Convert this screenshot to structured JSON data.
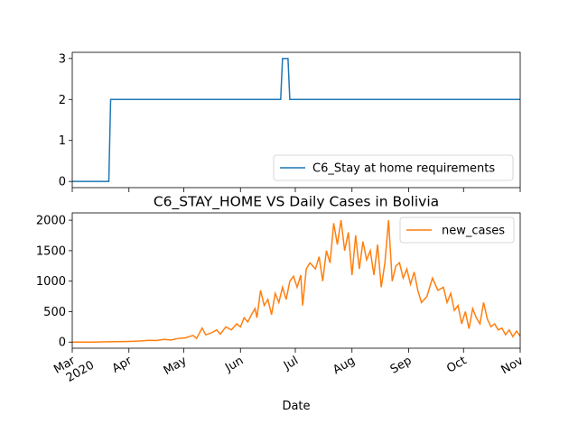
{
  "chart_data": [
    {
      "type": "line",
      "title": "",
      "xlabel": "",
      "ylabel": "",
      "ylim": [
        -0.15,
        3.15
      ],
      "yticks": [
        0,
        1,
        2,
        3
      ],
      "xlim": [
        "2020-03-01",
        "2020-11-01"
      ],
      "legend": {
        "placement": "lower-right",
        "entries": [
          "C6_Stay at home requirements"
        ]
      },
      "grid": false,
      "series": [
        {
          "name": "C6_Stay at home requirements",
          "color": "#1f77b4",
          "points": [
            [
              "2020-03-01",
              0
            ],
            [
              "2020-03-21",
              0
            ],
            [
              "2020-03-22",
              2
            ],
            [
              "2020-06-23",
              2
            ],
            [
              "2020-06-24",
              3
            ],
            [
              "2020-06-27",
              3
            ],
            [
              "2020-06-28",
              2
            ],
            [
              "2020-11-01",
              2
            ]
          ]
        }
      ]
    },
    {
      "type": "line",
      "title": "C6_STAY_HOME VS Daily Cases in Bolivia",
      "xlabel": "Date",
      "ylabel": "",
      "ylim": [
        -100,
        2120
      ],
      "yticks": [
        0,
        500,
        1000,
        1500,
        2000
      ],
      "xlim": [
        "2020-03-01",
        "2020-11-01"
      ],
      "xticks": [
        {
          "date": "2020-03-01",
          "label": "Mar",
          "sublabel": "2020"
        },
        {
          "date": "2020-04-01",
          "label": "Apr"
        },
        {
          "date": "2020-05-01",
          "label": "May"
        },
        {
          "date": "2020-06-01",
          "label": "Jun"
        },
        {
          "date": "2020-07-01",
          "label": "Jul"
        },
        {
          "date": "2020-08-01",
          "label": "Aug"
        },
        {
          "date": "2020-09-01",
          "label": "Sep"
        },
        {
          "date": "2020-10-01",
          "label": "Oct"
        },
        {
          "date": "2020-11-01",
          "label": "Nov"
        }
      ],
      "legend": {
        "placement": "top-right",
        "entries": [
          "new_cases"
        ]
      },
      "grid": false,
      "series": [
        {
          "name": "new_cases",
          "color": "#ff7f0e",
          "points": [
            [
              "2020-03-01",
              0
            ],
            [
              "2020-03-10",
              0
            ],
            [
              "2020-03-15",
              2
            ],
            [
              "2020-03-20",
              5
            ],
            [
              "2020-03-25",
              8
            ],
            [
              "2020-03-30",
              10
            ],
            [
              "2020-04-04",
              14
            ],
            [
              "2020-04-08",
              20
            ],
            [
              "2020-04-12",
              30
            ],
            [
              "2020-04-16",
              25
            ],
            [
              "2020-04-20",
              45
            ],
            [
              "2020-04-24",
              35
            ],
            [
              "2020-04-28",
              60
            ],
            [
              "2020-05-02",
              70
            ],
            [
              "2020-05-06",
              110
            ],
            [
              "2020-05-08",
              60
            ],
            [
              "2020-05-11",
              230
            ],
            [
              "2020-05-13",
              120
            ],
            [
              "2020-05-16",
              150
            ],
            [
              "2020-05-19",
              200
            ],
            [
              "2020-05-21",
              130
            ],
            [
              "2020-05-24",
              250
            ],
            [
              "2020-05-27",
              200
            ],
            [
              "2020-05-30",
              300
            ],
            [
              "2020-06-01",
              250
            ],
            [
              "2020-06-03",
              400
            ],
            [
              "2020-06-05",
              330
            ],
            [
              "2020-06-07",
              450
            ],
            [
              "2020-06-09",
              550
            ],
            [
              "2020-06-10",
              400
            ],
            [
              "2020-06-12",
              850
            ],
            [
              "2020-06-14",
              600
            ],
            [
              "2020-06-16",
              700
            ],
            [
              "2020-06-18",
              450
            ],
            [
              "2020-06-20",
              800
            ],
            [
              "2020-06-22",
              650
            ],
            [
              "2020-06-24",
              900
            ],
            [
              "2020-06-26",
              700
            ],
            [
              "2020-06-28",
              1000
            ],
            [
              "2020-06-30",
              1080
            ],
            [
              "2020-07-02",
              900
            ],
            [
              "2020-07-04",
              1100
            ],
            [
              "2020-07-05",
              600
            ],
            [
              "2020-07-07",
              1200
            ],
            [
              "2020-07-09",
              1300
            ],
            [
              "2020-07-12",
              1200
            ],
            [
              "2020-07-14",
              1400
            ],
            [
              "2020-07-16",
              1000
            ],
            [
              "2020-07-18",
              1500
            ],
            [
              "2020-07-20",
              1300
            ],
            [
              "2020-07-22",
              1950
            ],
            [
              "2020-07-24",
              1600
            ],
            [
              "2020-07-26",
              2000
            ],
            [
              "2020-07-28",
              1500
            ],
            [
              "2020-07-30",
              1800
            ],
            [
              "2020-08-01",
              1100
            ],
            [
              "2020-08-03",
              1750
            ],
            [
              "2020-08-05",
              1200
            ],
            [
              "2020-08-07",
              1650
            ],
            [
              "2020-08-09",
              1350
            ],
            [
              "2020-08-11",
              1500
            ],
            [
              "2020-08-13",
              1100
            ],
            [
              "2020-08-15",
              1600
            ],
            [
              "2020-08-17",
              900
            ],
            [
              "2020-08-19",
              1300
            ],
            [
              "2020-08-21",
              2000
            ],
            [
              "2020-08-23",
              1000
            ],
            [
              "2020-08-25",
              1250
            ],
            [
              "2020-08-27",
              1300
            ],
            [
              "2020-08-29",
              1050
            ],
            [
              "2020-08-31",
              1200
            ],
            [
              "2020-09-02",
              950
            ],
            [
              "2020-09-04",
              1150
            ],
            [
              "2020-09-06",
              850
            ],
            [
              "2020-09-08",
              650
            ],
            [
              "2020-09-11",
              750
            ],
            [
              "2020-09-14",
              1050
            ],
            [
              "2020-09-17",
              850
            ],
            [
              "2020-09-20",
              900
            ],
            [
              "2020-09-22",
              650
            ],
            [
              "2020-09-24",
              800
            ],
            [
              "2020-09-26",
              520
            ],
            [
              "2020-09-28",
              600
            ],
            [
              "2020-09-30",
              300
            ],
            [
              "2020-10-02",
              500
            ],
            [
              "2020-10-04",
              220
            ],
            [
              "2020-10-06",
              550
            ],
            [
              "2020-10-08",
              400
            ],
            [
              "2020-10-10",
              300
            ],
            [
              "2020-10-12",
              650
            ],
            [
              "2020-10-14",
              380
            ],
            [
              "2020-10-16",
              250
            ],
            [
              "2020-10-18",
              300
            ],
            [
              "2020-10-20",
              200
            ],
            [
              "2020-10-22",
              230
            ],
            [
              "2020-10-24",
              120
            ],
            [
              "2020-10-26",
              200
            ],
            [
              "2020-10-28",
              90
            ],
            [
              "2020-10-30",
              180
            ],
            [
              "2020-11-01",
              100
            ]
          ]
        }
      ]
    }
  ]
}
